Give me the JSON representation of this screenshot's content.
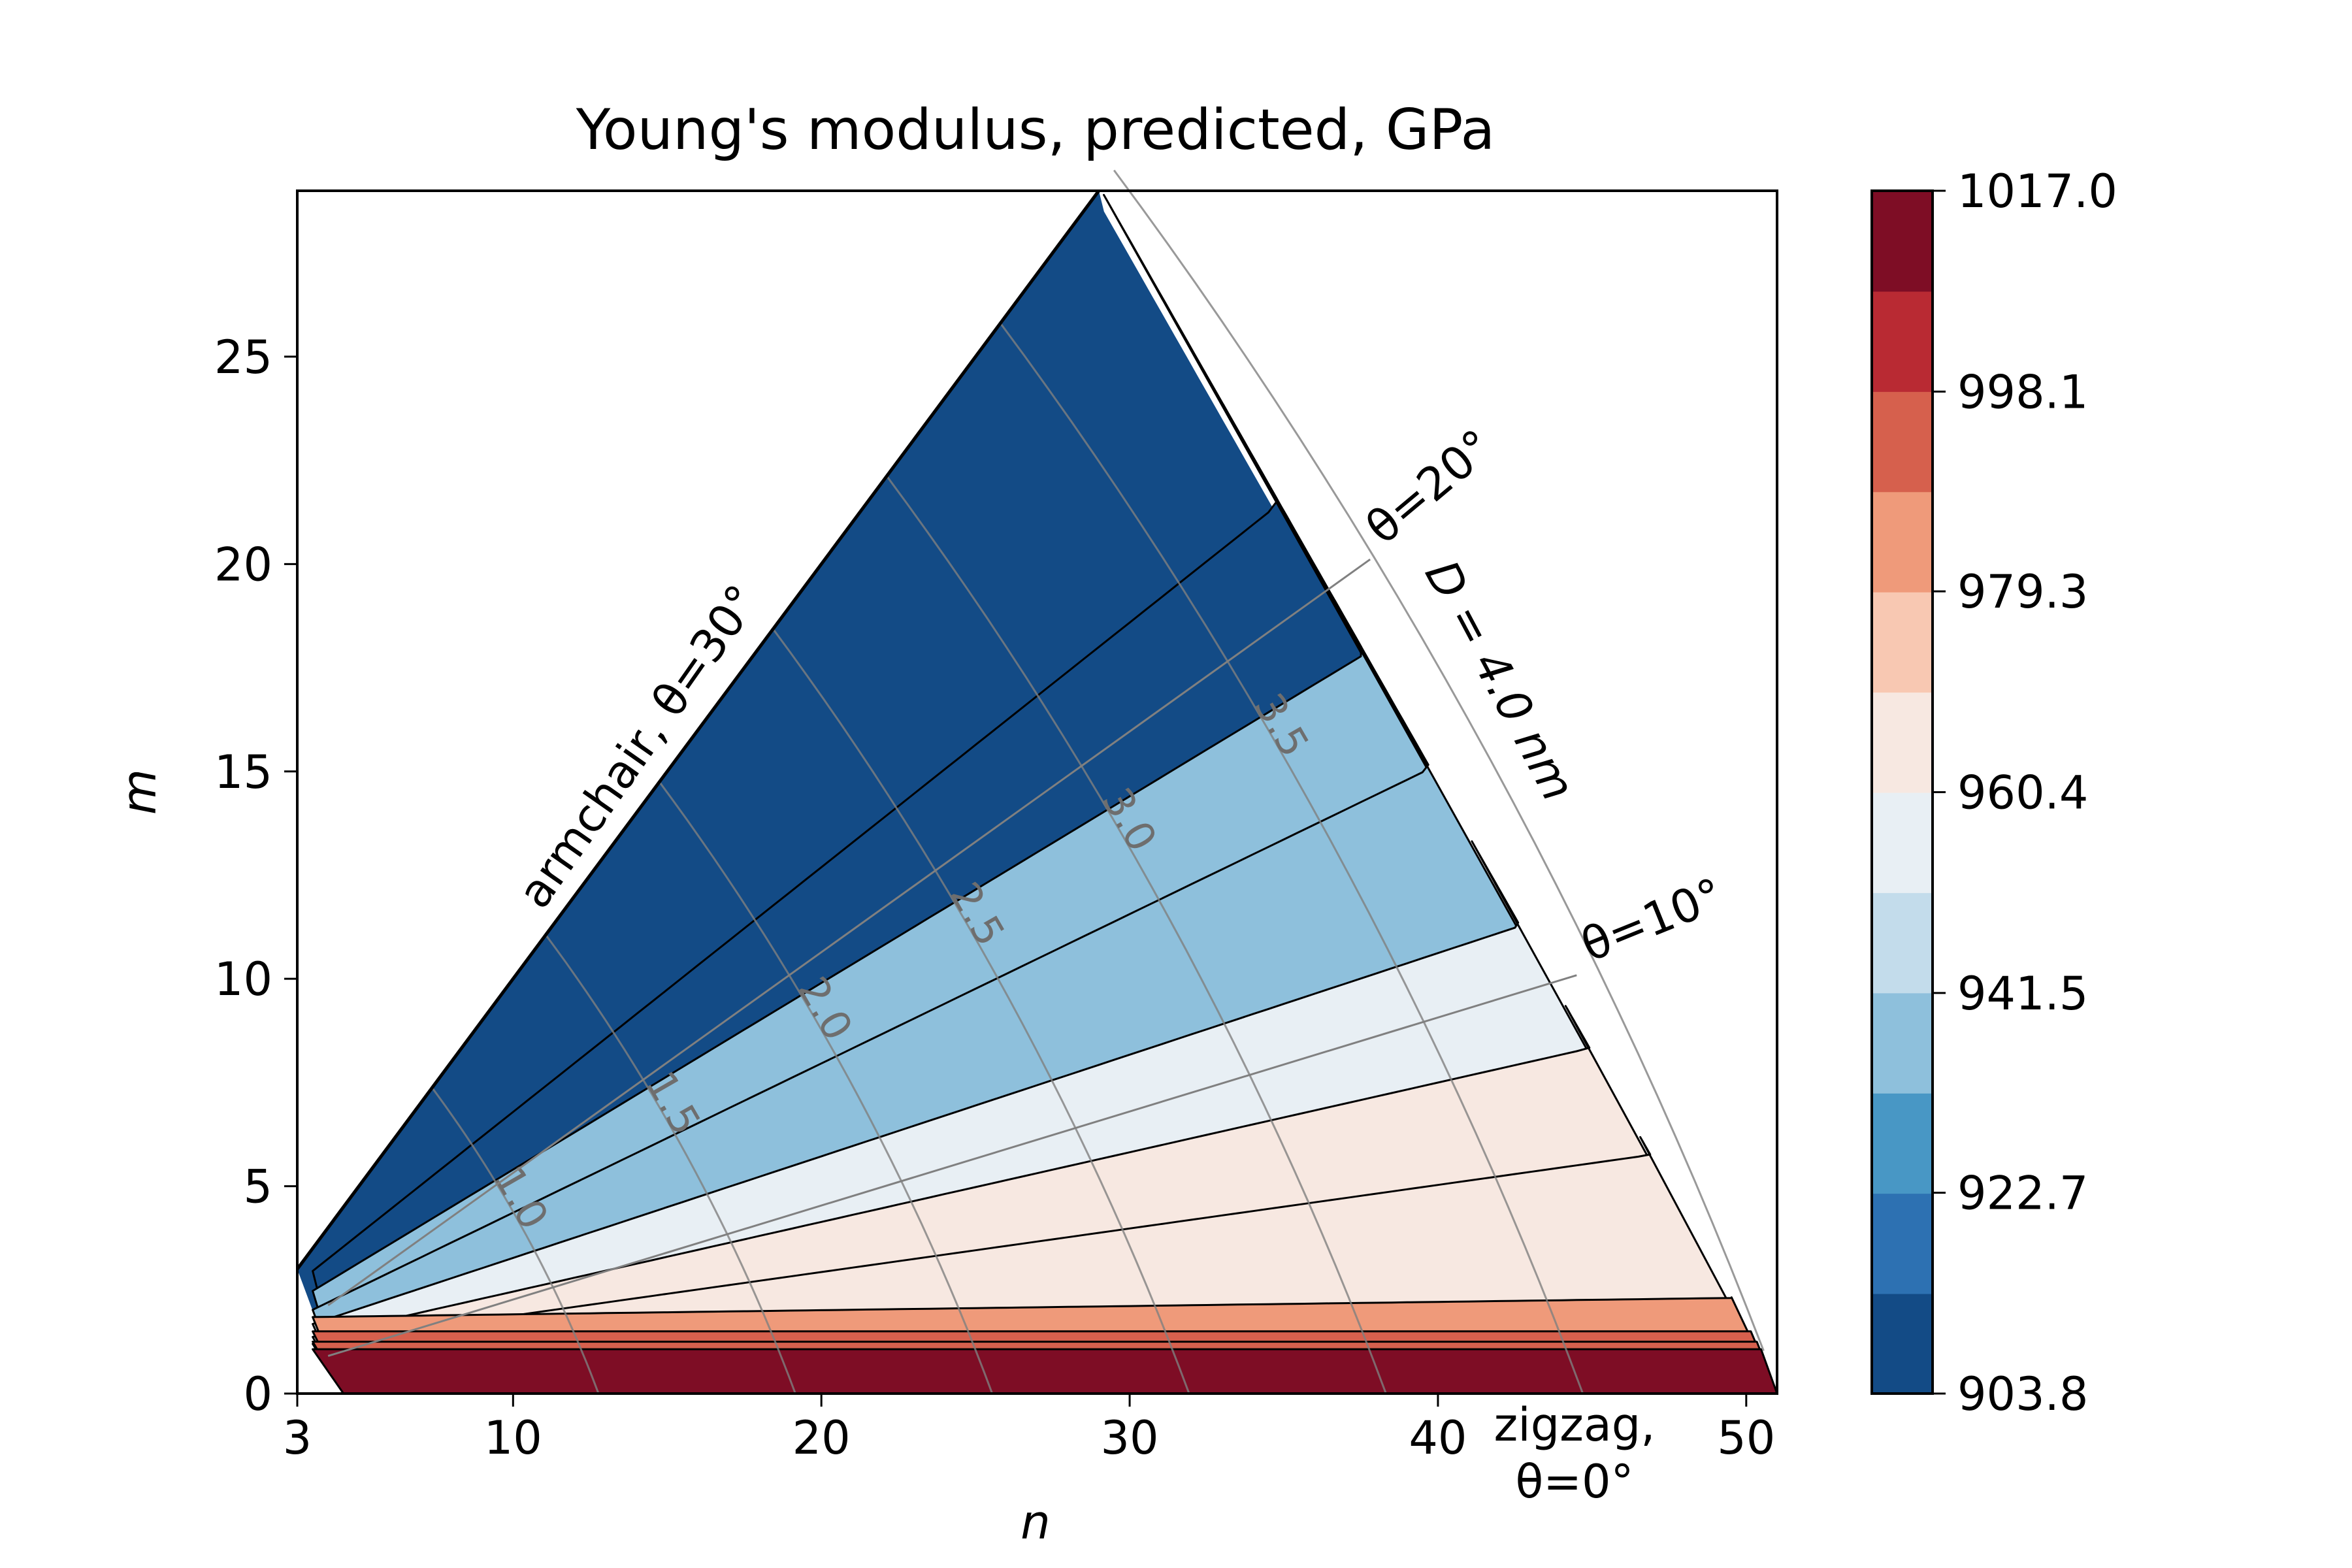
{
  "chart_data": {
    "type": "heatmap",
    "title": "Young's modulus, predicted, GPa",
    "xlabel": "n",
    "ylabel": "m",
    "xlim": [
      3,
      51
    ],
    "ylim": [
      0,
      29
    ],
    "xticks": [
      3,
      10,
      20,
      30,
      40,
      50
    ],
    "yticks": [
      0,
      5,
      10,
      15,
      20,
      25
    ],
    "colorbar": {
      "range": [
        903.8,
        1017.0
      ],
      "tick_values": [
        903.8,
        922.7,
        941.5,
        960.4,
        979.3,
        998.1,
        1017.0
      ],
      "tick_labels": [
        "903.8",
        "922.7",
        "941.5",
        "960.4",
        "979.3",
        "998.1",
        "1017.0"
      ],
      "levels": 12,
      "colors": [
        "#134b86",
        "#2d71b2",
        "#4897c5",
        "#8ec0dc",
        "#c3dceb",
        "#e8eff4",
        "#f7e8e1",
        "#f8c8b2",
        "#ef9a7a",
        "#d6604d",
        "#b92a33",
        "#7e0d25"
      ]
    },
    "region_values": [
      {
        "name": "band-1",
        "value": 913.2
      },
      {
        "name": "band-2",
        "value": 932.1
      },
      {
        "name": "band-3",
        "value": 941.5
      },
      {
        "name": "band-4",
        "value": 951.0
      },
      {
        "name": "band-5",
        "value": 960.4
      },
      {
        "name": "band-6",
        "value": 969.8
      },
      {
        "name": "band-7",
        "value": 979.3
      },
      {
        "name": "band-8",
        "value": 988.7
      },
      {
        "name": "band-9",
        "value": 998.1
      },
      {
        "name": "band-10",
        "value": 1007.6
      }
    ],
    "diameter_contours": [
      {
        "label": "1.0",
        "D": 1.0
      },
      {
        "label": "1.5",
        "D": 1.5
      },
      {
        "label": "2.0",
        "D": 2.0
      },
      {
        "label": "2.5",
        "D": 2.5
      },
      {
        "label": "3.0",
        "D": 3.0
      },
      {
        "label": "3.5",
        "D": 3.5
      },
      {
        "label": "",
        "D": 4.0
      }
    ],
    "angle_lines": [
      {
        "label": "θ=10°",
        "theta": 10
      },
      {
        "label": "θ=20°",
        "theta": 20
      }
    ],
    "annotations": {
      "armchair": "armchair, θ=30°",
      "diameter": "D = 4.0 nm",
      "zigzag_line1": "zigzag,",
      "zigzag_line2": "θ=0°"
    }
  }
}
